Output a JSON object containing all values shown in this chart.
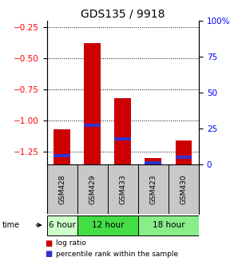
{
  "title": "GDS135 / 9918",
  "samples": [
    "GSM428",
    "GSM429",
    "GSM433",
    "GSM423",
    "GSM430"
  ],
  "groups": [
    {
      "label": "6 hour",
      "indices": [
        0
      ],
      "color": "#ccffcc"
    },
    {
      "label": "12 hour",
      "indices": [
        1,
        2
      ],
      "color": "#44dd44"
    },
    {
      "label": "18 hour",
      "indices": [
        3,
        4
      ],
      "color": "#88ee88"
    }
  ],
  "log_ratio": [
    -1.07,
    -0.38,
    -0.82,
    -1.3,
    -1.16
  ],
  "percentile_rank": [
    6,
    27,
    18,
    1,
    5
  ],
  "ylim_left": [
    -1.35,
    -0.2
  ],
  "ylim_right": [
    0,
    100
  ],
  "yticks_left": [
    -1.25,
    -1.0,
    -0.75,
    -0.5,
    -0.25
  ],
  "yticks_right": [
    0,
    25,
    50,
    75,
    100
  ],
  "bar_color_red": "#cc0000",
  "bar_color_blue": "#3333cc",
  "title_fontsize": 10,
  "tick_fontsize": 7.5,
  "label_bg": "#c8c8c8",
  "bar_width": 0.55
}
